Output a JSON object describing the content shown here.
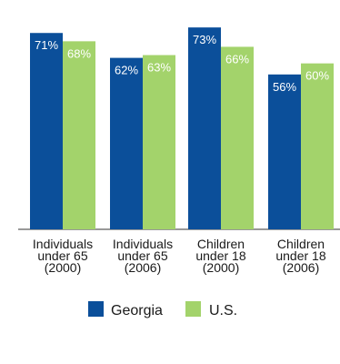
{
  "chart_data": {
    "type": "bar",
    "categories": [
      [
        "Individuals",
        "under 65",
        "(2000)"
      ],
      [
        "Individuals",
        "under 65",
        "(2006)"
      ],
      [
        "Children",
        "under 18",
        "(2000)"
      ],
      [
        "Children",
        "under 18",
        "(2006)"
      ]
    ],
    "series": [
      {
        "name": "Georgia",
        "values": [
          71,
          62,
          73,
          56
        ],
        "labels": [
          "71%",
          "62%",
          "73%",
          "56%"
        ],
        "color": "#0b4f9a"
      },
      {
        "name": "U.S.",
        "values": [
          68,
          63,
          66,
          60
        ],
        "labels": [
          "68%",
          "63%",
          "66%",
          "60%"
        ],
        "color": "#a3d36b"
      }
    ],
    "ylim": [
      0,
      77
    ],
    "grid": false,
    "legend_position": "bottom"
  }
}
